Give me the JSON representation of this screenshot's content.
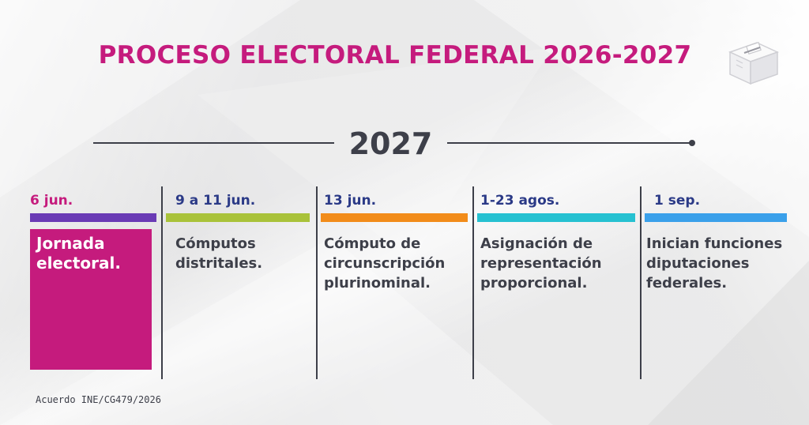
{
  "title": "PROCESO ELECTORAL FEDERAL 2026-2027",
  "year": "2027",
  "icon": "ballot-box-icon",
  "colors": {
    "primary": "#c51b7d",
    "text": "#3d3f49",
    "date_text": "#2b3a87"
  },
  "events": [
    {
      "date": "6 jun.",
      "description": "Jornada electoral.",
      "bar_color": "#6a3bb5",
      "highlighted": true
    },
    {
      "date": "9 a 11 jun.",
      "description": "Cómputos distritales.",
      "bar_color": "#a9c23a",
      "highlighted": false
    },
    {
      "date": "13 jun.",
      "description": "Cómputo de circunscripción plurinominal.",
      "bar_color": "#f28c1a",
      "highlighted": false
    },
    {
      "date": "1-23 agos.",
      "description": "Asignación de representación proporcional.",
      "bar_color": "#26c1d1",
      "highlighted": false
    },
    {
      "date": "1 sep.",
      "description": "Inician funciones diputaciones federales.",
      "bar_color": "#3aa0ea",
      "highlighted": false
    }
  ],
  "footnote": "Acuerdo INE/CG479/2026"
}
